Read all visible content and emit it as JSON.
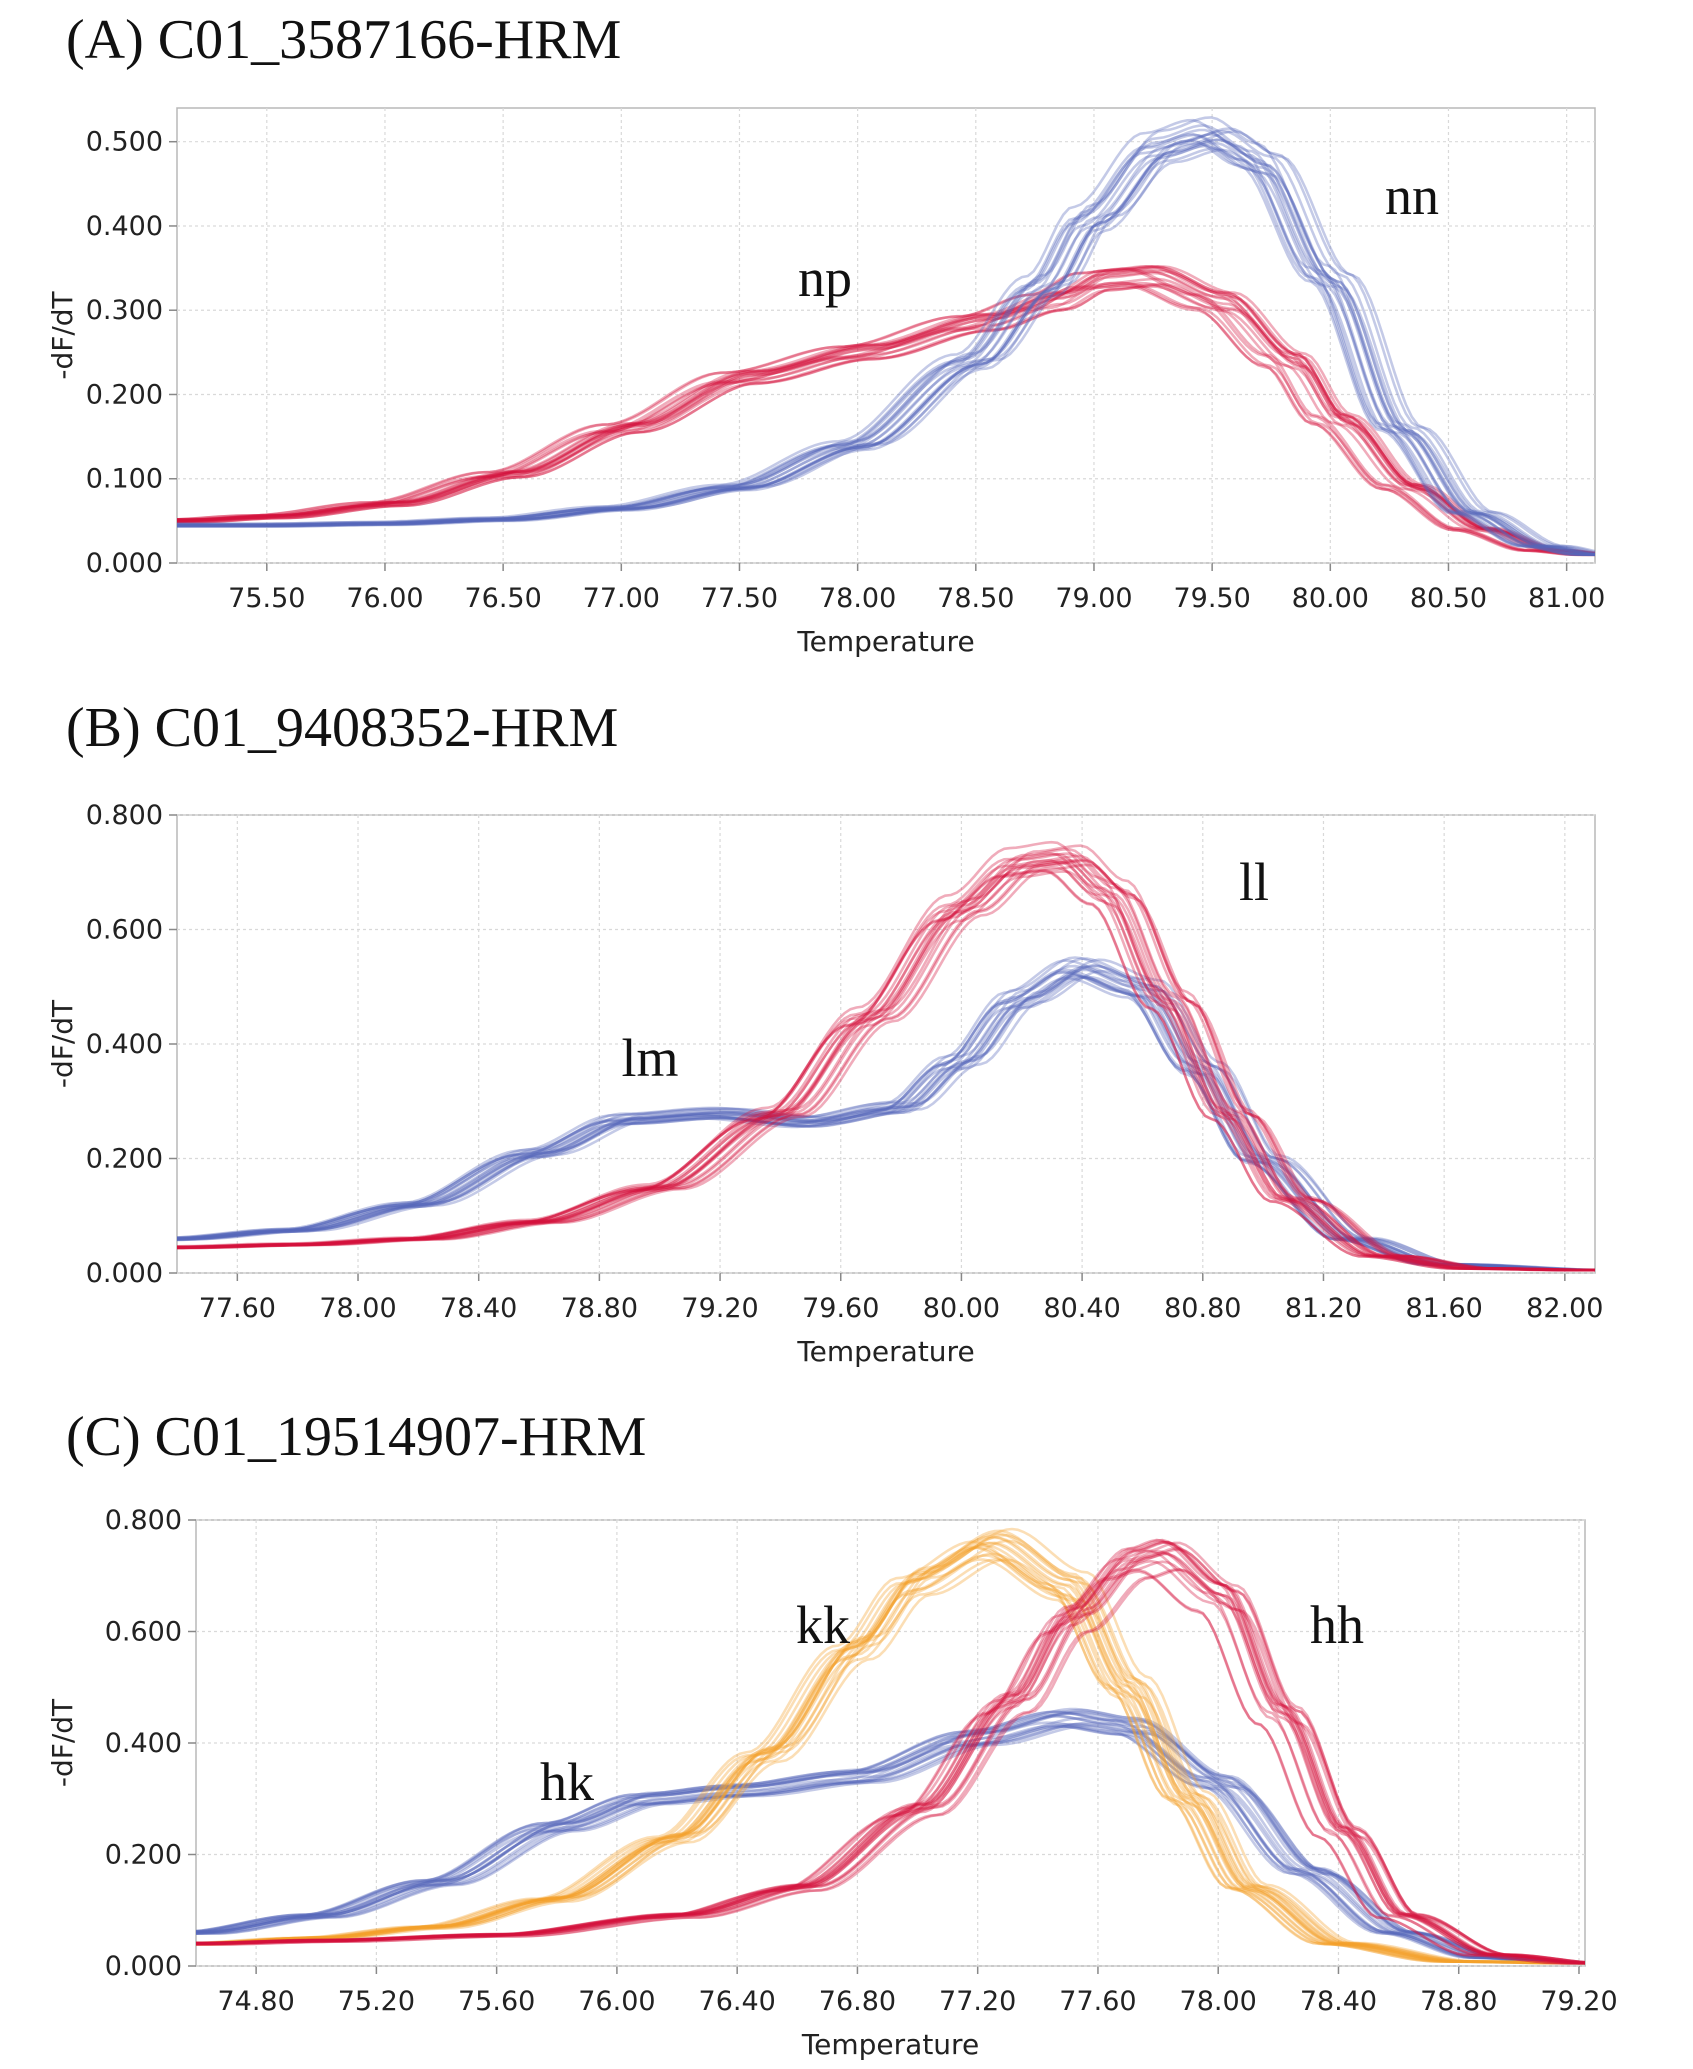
{
  "chart_data": [
    {
      "type": "line",
      "title": "(A) C01_3587166-HRM",
      "xlabel": "Temperature",
      "ylabel": "-dF/dT",
      "xlim": [
        75.12,
        81.12
      ],
      "ylim": [
        0.0,
        0.54
      ],
      "xticks": [
        "75.50",
        "76.00",
        "76.50",
        "77.00",
        "77.50",
        "78.00",
        "78.50",
        "79.00",
        "79.50",
        "80.00",
        "80.50",
        "81.00"
      ],
      "yticks": [
        "0.000",
        "0.100",
        "0.200",
        "0.300",
        "0.400",
        "0.500"
      ],
      "grid": true,
      "series": [
        {
          "name": "np",
          "color": "#d4123c",
          "x": [
            75.12,
            75.5,
            76.0,
            76.5,
            77.0,
            77.5,
            78.0,
            78.5,
            78.8,
            79.0,
            79.2,
            79.5,
            79.8,
            80.0,
            80.3,
            80.6,
            80.9,
            81.12
          ],
          "y": [
            0.05,
            0.055,
            0.07,
            0.105,
            0.16,
            0.22,
            0.25,
            0.285,
            0.31,
            0.335,
            0.34,
            0.31,
            0.24,
            0.17,
            0.09,
            0.04,
            0.015,
            0.01
          ]
        },
        {
          "name": "nn",
          "color": "#5566bb",
          "x": [
            75.12,
            75.5,
            76.0,
            76.5,
            77.0,
            77.5,
            78.0,
            78.5,
            78.8,
            79.0,
            79.3,
            79.5,
            79.7,
            80.0,
            80.3,
            80.6,
            80.9,
            81.12
          ],
          "y": [
            0.045,
            0.045,
            0.047,
            0.052,
            0.065,
            0.09,
            0.14,
            0.24,
            0.33,
            0.41,
            0.495,
            0.51,
            0.48,
            0.34,
            0.16,
            0.06,
            0.02,
            0.01
          ]
        }
      ]
    },
    {
      "type": "line",
      "title": "(B) C01_9408352-HRM",
      "xlabel": "Temperature",
      "ylabel": "-dF/dT",
      "xlim": [
        77.4,
        82.1
      ],
      "ylim": [
        0.0,
        0.8
      ],
      "xticks": [
        "77.60",
        "78.00",
        "78.40",
        "78.80",
        "79.20",
        "79.60",
        "80.00",
        "80.40",
        "80.80",
        "81.20",
        "81.60",
        "82.00"
      ],
      "yticks": [
        "0.000",
        "0.200",
        "0.400",
        "0.600",
        "0.800"
      ],
      "grid": true,
      "series": [
        {
          "name": "lm",
          "color": "#5566bb",
          "x": [
            77.4,
            77.8,
            78.2,
            78.6,
            78.9,
            79.2,
            79.5,
            79.8,
            80.0,
            80.2,
            80.4,
            80.6,
            80.8,
            81.0,
            81.3,
            81.6,
            82.1
          ],
          "y": [
            0.06,
            0.075,
            0.12,
            0.21,
            0.27,
            0.28,
            0.265,
            0.29,
            0.37,
            0.48,
            0.535,
            0.5,
            0.36,
            0.2,
            0.06,
            0.015,
            0.005
          ]
        },
        {
          "name": "ll",
          "color": "#d4123c",
          "x": [
            77.4,
            77.8,
            78.2,
            78.6,
            79.0,
            79.4,
            79.7,
            80.0,
            80.2,
            80.35,
            80.5,
            80.7,
            80.9,
            81.1,
            81.4,
            81.7,
            82.1
          ],
          "y": [
            0.045,
            0.05,
            0.06,
            0.09,
            0.15,
            0.28,
            0.45,
            0.64,
            0.72,
            0.73,
            0.67,
            0.48,
            0.28,
            0.13,
            0.03,
            0.008,
            0.005
          ]
        }
      ]
    },
    {
      "type": "line",
      "title": "(C) C01_19514907-HRM",
      "xlabel": "Temperature",
      "ylabel": "-dF/dT",
      "xlim": [
        74.6,
        79.22
      ],
      "ylim": [
        0.0,
        0.8
      ],
      "xticks": [
        "74.80",
        "75.20",
        "75.60",
        "76.00",
        "76.40",
        "76.80",
        "77.20",
        "77.60",
        "78.00",
        "78.40",
        "78.80",
        "79.20"
      ],
      "yticks": [
        "0.000",
        "0.200",
        "0.400",
        "0.600",
        "0.800"
      ],
      "grid": true,
      "series": [
        {
          "name": "hk",
          "color": "#5566bb",
          "x": [
            74.6,
            75.0,
            75.4,
            75.8,
            76.1,
            76.4,
            76.8,
            77.2,
            77.5,
            77.7,
            78.0,
            78.3,
            78.6,
            78.9,
            79.22
          ],
          "y": [
            0.06,
            0.09,
            0.15,
            0.25,
            0.3,
            0.315,
            0.34,
            0.41,
            0.445,
            0.43,
            0.33,
            0.17,
            0.06,
            0.015,
            0.005
          ]
        },
        {
          "name": "kk",
          "color": "#f4a12b",
          "x": [
            74.6,
            75.0,
            75.4,
            75.8,
            76.2,
            76.5,
            76.8,
            77.0,
            77.25,
            77.5,
            77.7,
            77.9,
            78.1,
            78.4,
            78.8,
            79.22
          ],
          "y": [
            0.04,
            0.05,
            0.07,
            0.12,
            0.23,
            0.38,
            0.57,
            0.69,
            0.755,
            0.68,
            0.5,
            0.3,
            0.14,
            0.04,
            0.008,
            0.005
          ]
        },
        {
          "name": "hh",
          "color": "#d4123c",
          "x": [
            74.6,
            75.0,
            75.6,
            76.2,
            76.6,
            77.0,
            77.3,
            77.5,
            77.7,
            77.8,
            78.0,
            78.2,
            78.4,
            78.6,
            78.9,
            79.22
          ],
          "y": [
            0.04,
            0.045,
            0.055,
            0.09,
            0.14,
            0.28,
            0.47,
            0.62,
            0.72,
            0.735,
            0.66,
            0.45,
            0.24,
            0.09,
            0.02,
            0.005
          ]
        }
      ]
    }
  ]
}
